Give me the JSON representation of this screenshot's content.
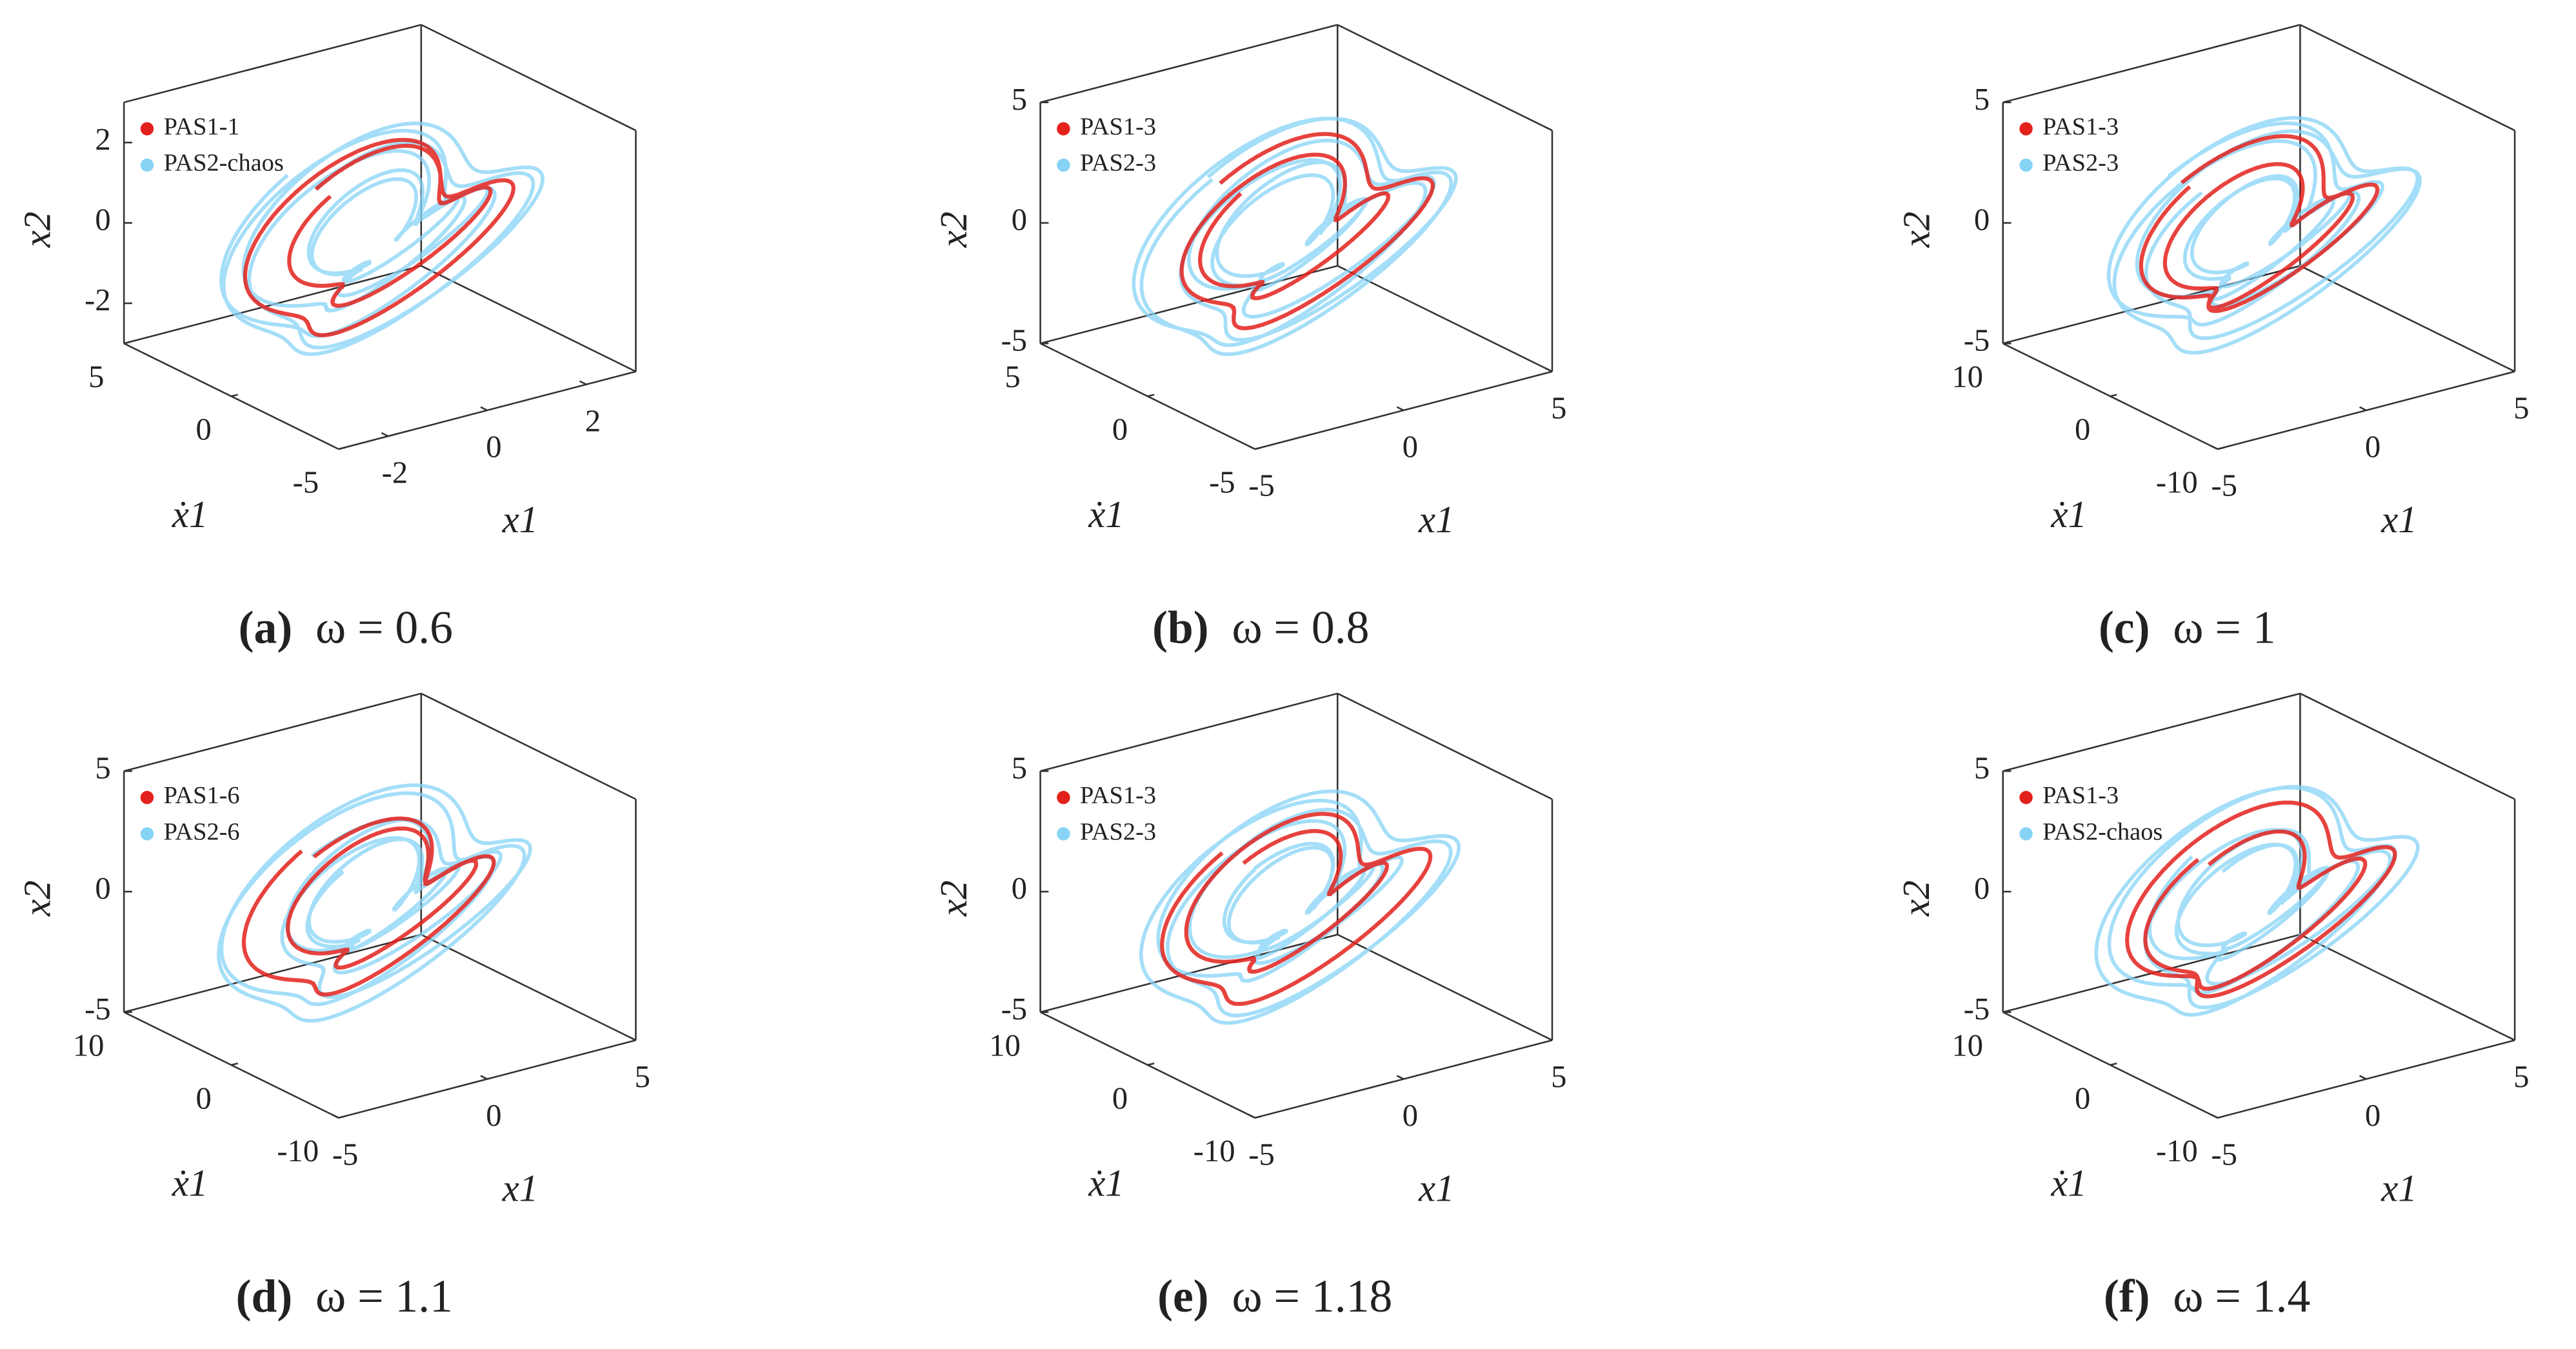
{
  "chart_data": [
    {
      "type": "phase3d",
      "caption_label": "(a)",
      "caption": "ω = 0.6",
      "xlabel": "x1",
      "ylabel": "ẋ1",
      "zlabel": "x2",
      "xlim": [
        -3,
        3
      ],
      "xticks": [
        -2,
        0,
        2
      ],
      "ylim": [
        -5,
        5
      ],
      "yticks": [
        5,
        0,
        -5
      ],
      "zlim": [
        -3,
        3
      ],
      "zticks": [
        2,
        0,
        -2
      ],
      "series": [
        {
          "name": "PAS1-1",
          "color": "#e3211c"
        },
        {
          "name": "PAS2-chaos",
          "color": "#86d3f5"
        }
      ]
    },
    {
      "type": "phase3d",
      "caption_label": "(b)",
      "caption": "ω = 0.8",
      "xlabel": "x1",
      "ylabel": "ẋ1",
      "zlabel": "x2",
      "xlim": [
        -5,
        5
      ],
      "xticks": [
        -5,
        0,
        5
      ],
      "ylim": [
        -5,
        5
      ],
      "yticks": [
        5,
        0,
        -5
      ],
      "zlim": [
        -5,
        5
      ],
      "zticks": [
        5,
        0,
        -5
      ],
      "series": [
        {
          "name": "PAS1-3",
          "color": "#e3211c"
        },
        {
          "name": "PAS2-3",
          "color": "#86d3f5"
        }
      ]
    },
    {
      "type": "phase3d",
      "caption_label": "(c)",
      "caption": "ω = 1",
      "xlabel": "x1",
      "ylabel": "ẋ1",
      "zlabel": "x2",
      "xlim": [
        -5,
        5
      ],
      "xticks": [
        -5,
        0,
        5
      ],
      "ylim": [
        -10,
        10
      ],
      "yticks": [
        10,
        0,
        -10
      ],
      "zlim": [
        -5,
        5
      ],
      "zticks": [
        5,
        0,
        -5
      ],
      "series": [
        {
          "name": "PAS1-3",
          "color": "#e3211c"
        },
        {
          "name": "PAS2-3",
          "color": "#86d3f5"
        }
      ]
    },
    {
      "type": "phase3d",
      "caption_label": "(d)",
      "caption": "ω = 1.1",
      "xlabel": "x1",
      "ylabel": "ẋ1",
      "zlabel": "x2",
      "xlim": [
        -5,
        5
      ],
      "xticks": [
        -5,
        0,
        5
      ],
      "ylim": [
        -10,
        10
      ],
      "yticks": [
        10,
        0,
        -10
      ],
      "zlim": [
        -5,
        5
      ],
      "zticks": [
        5,
        0,
        -5
      ],
      "series": [
        {
          "name": "PAS1-6",
          "color": "#e3211c"
        },
        {
          "name": "PAS2-6",
          "color": "#86d3f5"
        }
      ]
    },
    {
      "type": "phase3d",
      "caption_label": "(e)",
      "caption": "ω = 1.18",
      "xlabel": "x1",
      "ylabel": "ẋ1",
      "zlabel": "x2",
      "xlim": [
        -5,
        5
      ],
      "xticks": [
        -5,
        0,
        5
      ],
      "ylim": [
        -10,
        10
      ],
      "yticks": [
        10,
        0,
        -10
      ],
      "zlim": [
        -5,
        5
      ],
      "zticks": [
        5,
        0,
        -5
      ],
      "series": [
        {
          "name": "PAS1-3",
          "color": "#e3211c"
        },
        {
          "name": "PAS2-3",
          "color": "#86d3f5"
        }
      ]
    },
    {
      "type": "phase3d",
      "caption_label": "(f)",
      "caption": "ω = 1.4",
      "xlabel": "x1",
      "ylabel": "ẋ1",
      "zlabel": "x2",
      "xlim": [
        -5,
        5
      ],
      "xticks": [
        -5,
        0,
        5
      ],
      "ylim": [
        -10,
        10
      ],
      "yticks": [
        10,
        0,
        -10
      ],
      "zlim": [
        -5,
        5
      ],
      "zticks": [
        5,
        0,
        -5
      ],
      "series": [
        {
          "name": "PAS1-3",
          "color": "#e3211c"
        },
        {
          "name": "PAS2-chaos",
          "color": "#86d3f5"
        }
      ]
    }
  ]
}
